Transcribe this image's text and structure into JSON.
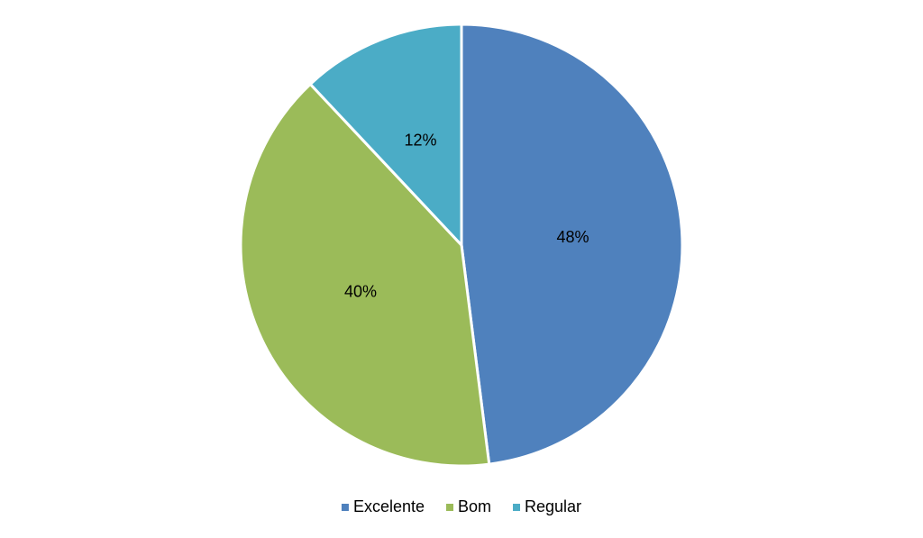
{
  "chart_data": {
    "type": "pie",
    "categories": [
      "Excelente",
      "Bom",
      "Regular"
    ],
    "values": [
      48,
      40,
      12
    ],
    "value_labels": [
      "48%",
      "40%",
      "12%"
    ],
    "colors": [
      "#4f81bd",
      "#9bbb59",
      "#4bacc6"
    ],
    "legend": "bottom"
  }
}
